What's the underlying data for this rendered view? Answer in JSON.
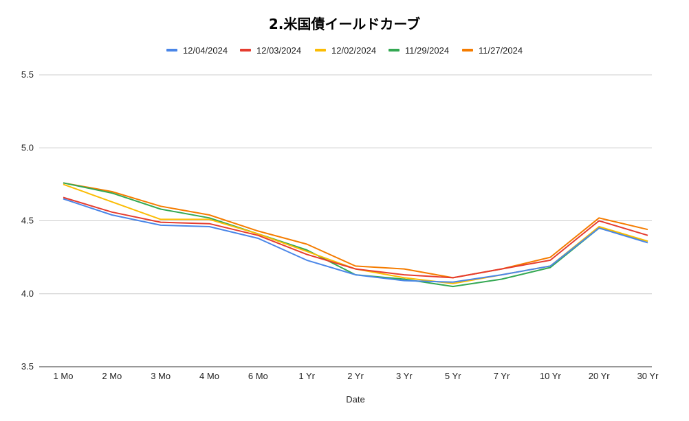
{
  "chart_data": {
    "type": "line",
    "title": "2.米国債イールドカーブ",
    "xlabel": "Date",
    "ylabel": "",
    "categories": [
      "1 Mo",
      "2 Mo",
      "3 Mo",
      "4 Mo",
      "6 Mo",
      "1 Yr",
      "2 Yr",
      "3 Yr",
      "5 Yr",
      "7 Yr",
      "10 Yr",
      "20 Yr",
      "30 Yr"
    ],
    "ylim": [
      3.5,
      5.5
    ],
    "yticks": [
      "3.5",
      "4.0",
      "4.5",
      "5.0",
      "5.5"
    ],
    "grid": true,
    "legend_position": "top",
    "series": [
      {
        "name": "12/04/2024",
        "color": "#4a86e8",
        "values": [
          4.65,
          4.54,
          4.47,
          4.46,
          4.38,
          4.23,
          4.13,
          4.09,
          4.08,
          4.13,
          4.19,
          4.45,
          4.35
        ]
      },
      {
        "name": "12/03/2024",
        "color": "#e53c2f",
        "values": [
          4.66,
          4.56,
          4.49,
          4.48,
          4.4,
          4.27,
          4.17,
          4.13,
          4.11,
          4.17,
          4.23,
          4.5,
          4.4
        ]
      },
      {
        "name": "12/02/2024",
        "color": "#fbbc04",
        "values": [
          4.75,
          4.63,
          4.51,
          4.51,
          4.41,
          4.29,
          4.17,
          4.11,
          4.07,
          4.13,
          4.19,
          4.46,
          4.36
        ]
      },
      {
        "name": "11/29/2024",
        "color": "#34a853",
        "values": [
          4.76,
          4.69,
          4.58,
          4.52,
          4.41,
          4.3,
          4.13,
          4.1,
          4.05,
          4.1,
          4.18,
          4.45,
          4.36
        ]
      },
      {
        "name": "11/27/2024",
        "color": "#f57c00",
        "values": [
          4.76,
          4.7,
          4.6,
          4.54,
          4.43,
          4.34,
          4.19,
          4.17,
          4.11,
          4.17,
          4.25,
          4.52,
          4.44
        ]
      }
    ]
  }
}
